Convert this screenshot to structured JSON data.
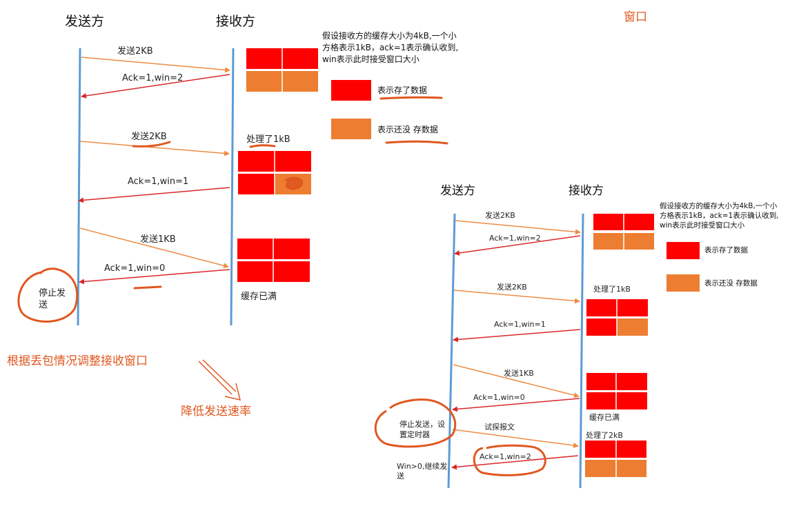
{
  "annotations": {
    "window_title": "窗口",
    "adjust_window": "根据丢包情况调整接收窗口",
    "reduce_rate": "降低发送速率"
  },
  "left_diagram": {
    "sender": "发送方",
    "receiver": "接收方",
    "note_lines": [
      "假设接收方的缓存大小为4kB,一个小",
      "方格表示1kB，ack=1表示确认收到,",
      "win表示此时接受窗口大小"
    ],
    "legend_stored": "表示存了数据",
    "legend_empty": "表示还没 存数据",
    "messages": {
      "send1": "发送2KB",
      "ack1": "Ack=1,win=2",
      "send2": "发送2KB",
      "ack2": "Ack=1,win=1",
      "send3": "发送1KB",
      "ack3": "Ack=1,win=0"
    },
    "processed": "处理了1kB",
    "buffer_full": "缓存已满",
    "stop_line1": "停止发",
    "stop_line2": "送"
  },
  "right_diagram": {
    "sender": "发送方",
    "receiver": "接收方",
    "note_lines": [
      "假设接收方的缓存大小为4kB,一个小",
      "方格表示1kB，ack=1表示确认收到,",
      "win表示此时接受窗口大小"
    ],
    "legend_stored": "表示存了数据",
    "legend_empty": "表示还没 存数据",
    "messages": {
      "send1": "发送2KB",
      "ack1": "Ack=1,win=2",
      "send2": "发送2KB",
      "ack2": "Ack=1,win=1",
      "send3": "发送1KB",
      "ack3": "Ack=1,win=0",
      "probe": "试探报文",
      "ack4": "Ack=1,win=2"
    },
    "processed1": "处理了1kB",
    "buffer_full": "缓存已满",
    "processed2": "处理了2kB",
    "stop_line1": "停止发送，设",
    "stop_line2": "置定时器",
    "resume_line1": "Win>0,继续发",
    "resume_line2": "送"
  },
  "colors": {
    "timeline": "#5b9bd5",
    "send_arrow": "#ed8b45",
    "ack_arrow": "#d9262a",
    "stored": "#ff0000",
    "empty": "#ed7d31",
    "annotation": "#e0571f"
  }
}
